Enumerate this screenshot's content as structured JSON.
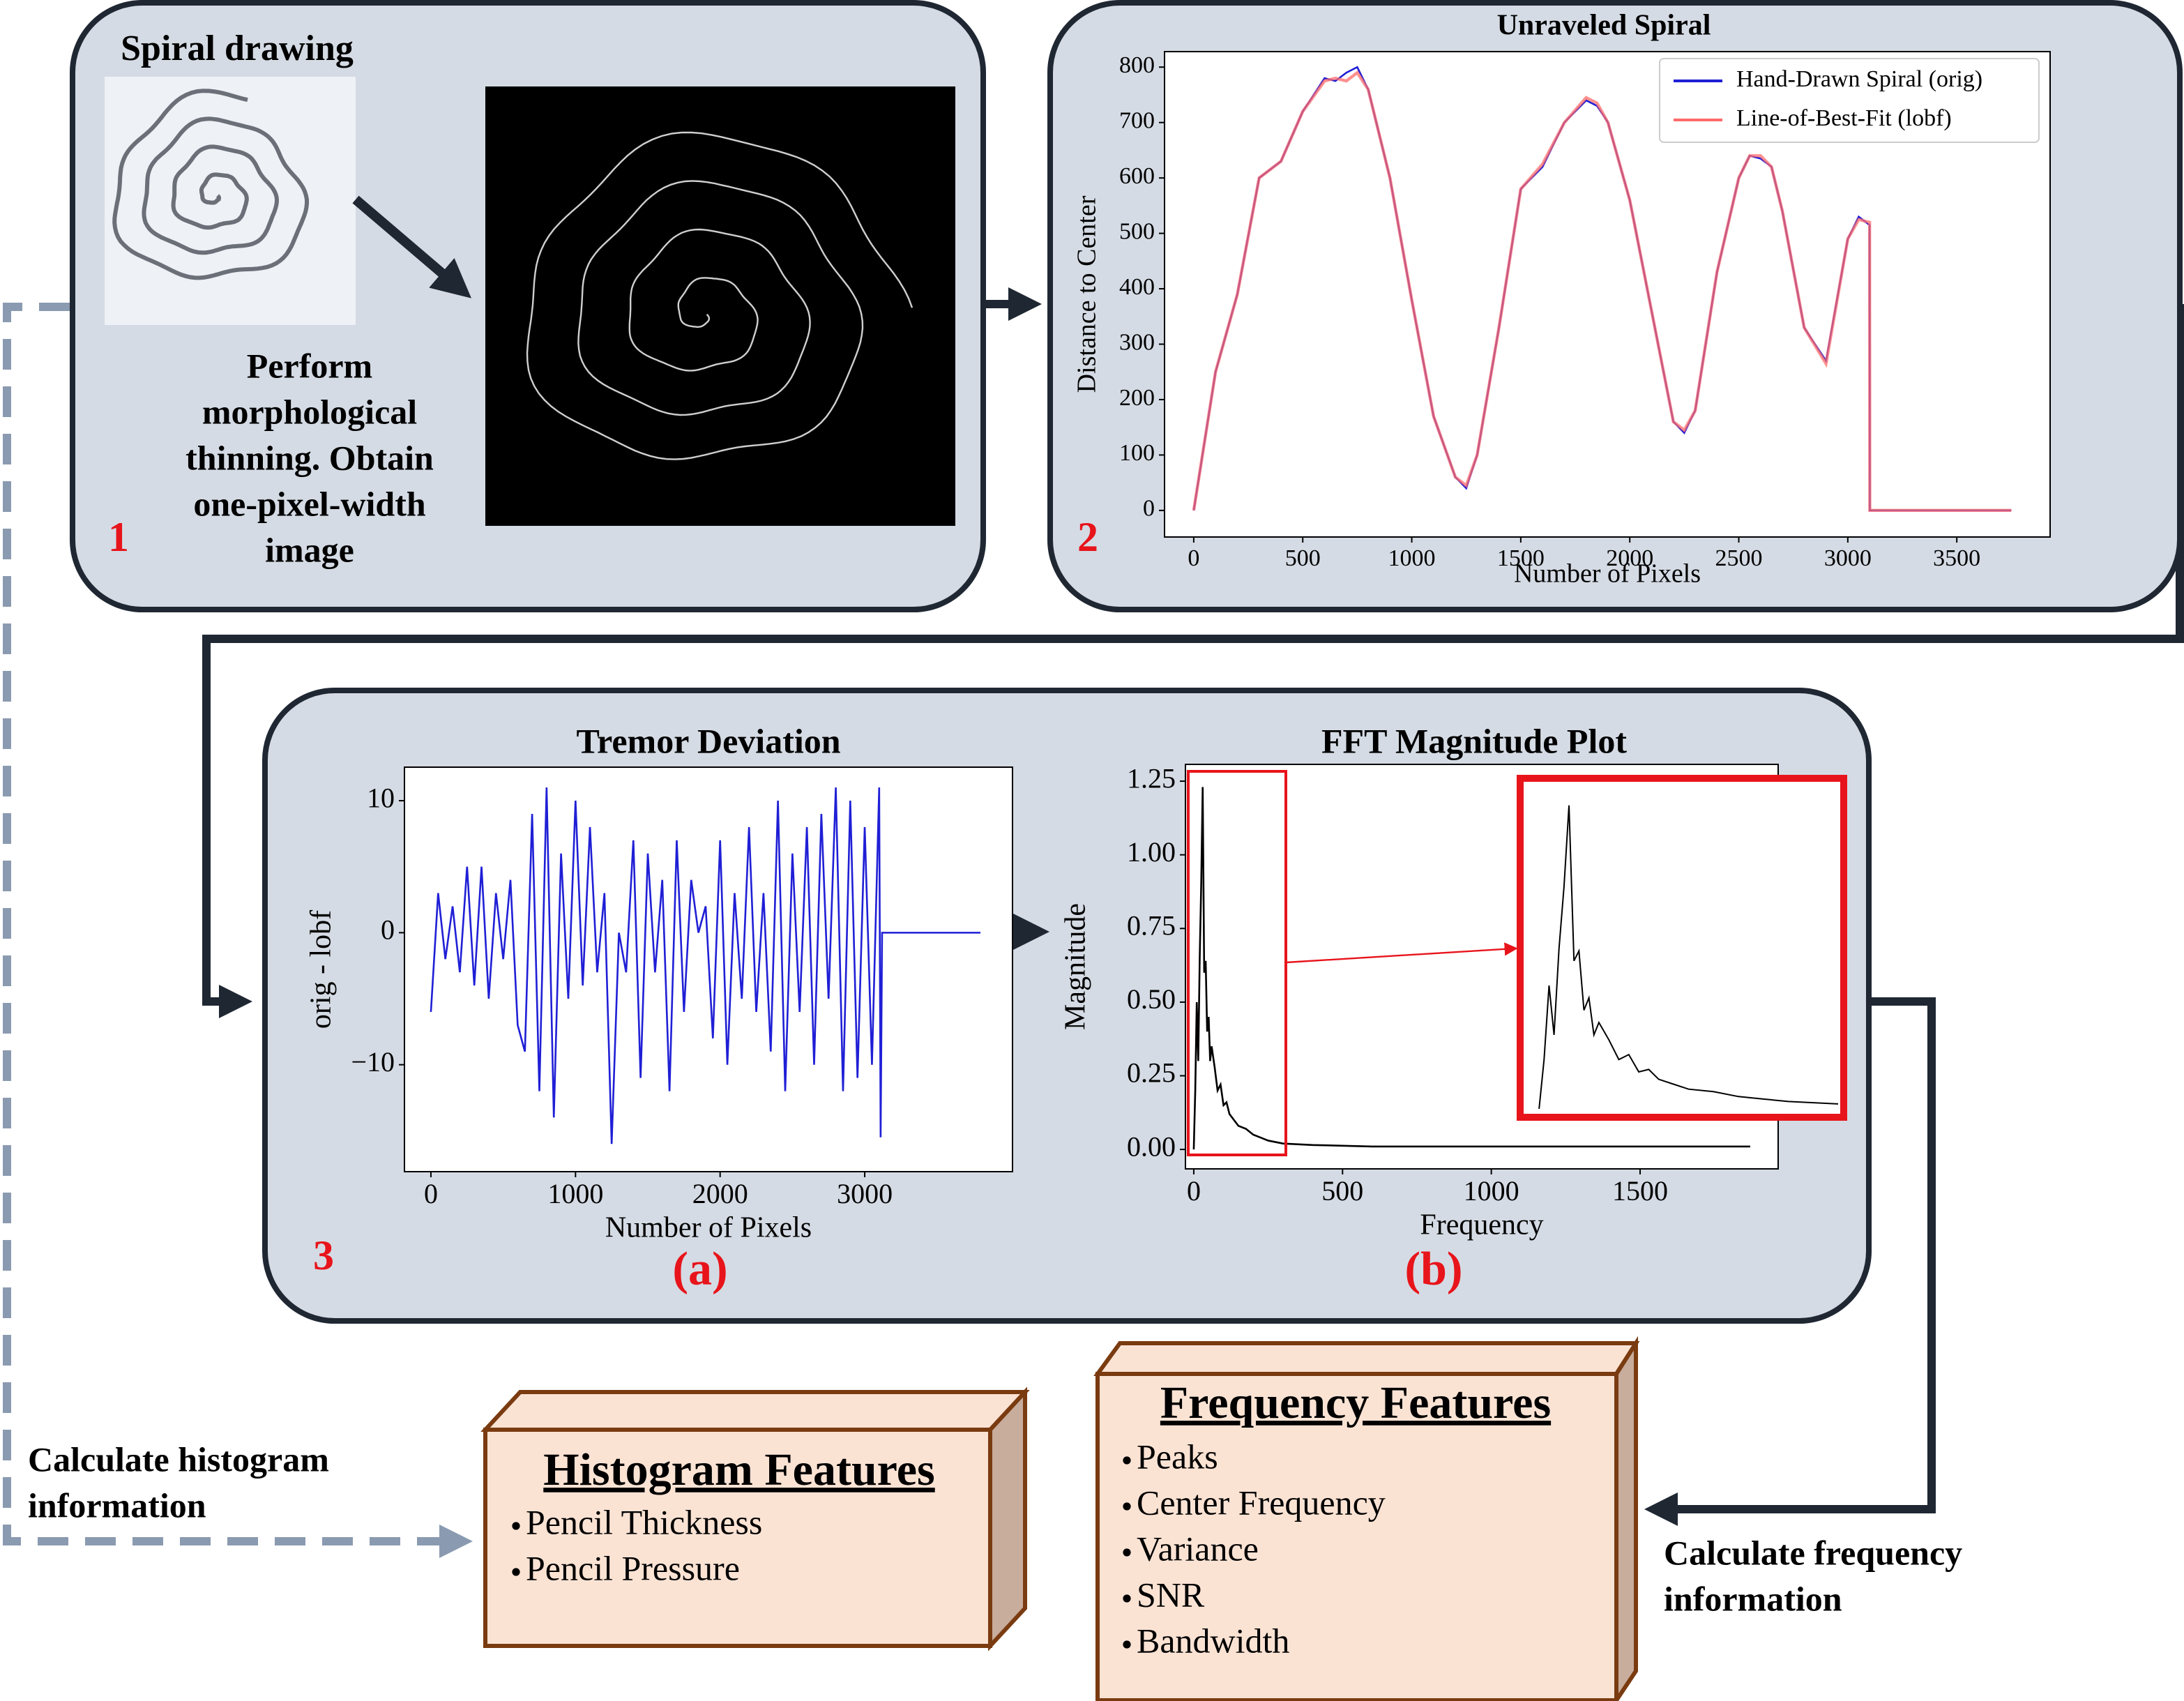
{
  "panel1": {
    "title": "Spiral drawing",
    "caption_lines": [
      "Perform",
      "morphological",
      "thinning. Obtain",
      "one-pixel-width",
      "image"
    ],
    "number": "1"
  },
  "panel2": {
    "number": "2"
  },
  "panel3": {
    "number": "3",
    "sublabels": [
      "(a)",
      "(b)"
    ]
  },
  "chart_data": [
    {
      "type": "line",
      "title": "Unraveled Spiral",
      "x_label": "Number of Pixels",
      "y_label": "Distance to Center",
      "x": [
        0,
        100,
        200,
        300,
        350,
        400,
        500,
        600,
        650,
        700,
        750,
        800,
        900,
        1000,
        1100,
        1200,
        1250,
        1300,
        1400,
        1500,
        1600,
        1700,
        1800,
        1850,
        1900,
        2000,
        2100,
        2200,
        2250,
        2300,
        2400,
        2500,
        2550,
        2600,
        2650,
        2700,
        2800,
        2900,
        3000,
        3050,
        3100,
        3101,
        3500,
        3750
      ],
      "series": [
        {
          "name": "Hand-Drawn Spiral (orig)",
          "color": "#1f1fd6",
          "values": [
            0,
            250,
            390,
            600,
            615,
            630,
            720,
            780,
            775,
            790,
            800,
            760,
            600,
            380,
            170,
            60,
            40,
            100,
            330,
            580,
            620,
            700,
            740,
            730,
            700,
            560,
            360,
            160,
            140,
            180,
            430,
            600,
            640,
            635,
            620,
            540,
            330,
            270,
            490,
            530,
            515,
            0,
            0,
            0
          ]
        },
        {
          "name": "Line-of-Best-Fit (lobf)",
          "color": "#ff6b6b",
          "values": [
            0,
            250,
            390,
            600,
            615,
            630,
            720,
            775,
            780,
            775,
            790,
            760,
            600,
            380,
            170,
            60,
            45,
            100,
            330,
            580,
            625,
            700,
            745,
            735,
            700,
            560,
            360,
            160,
            145,
            180,
            430,
            600,
            640,
            640,
            620,
            540,
            330,
            265,
            490,
            525,
            520,
            0,
            0,
            0
          ]
        }
      ],
      "xlim": [
        -134,
        3928
      ],
      "ylim": [
        -48,
        828
      ],
      "xticks": [
        0,
        500,
        1000,
        1500,
        2000,
        2500,
        3000,
        3500
      ],
      "yticks": [
        0,
        100,
        200,
        300,
        400,
        500,
        600,
        700,
        800
      ],
      "legend": "upper right",
      "grid": false
    },
    {
      "type": "line",
      "title": "Tremor Deviation",
      "x_label": "Number of Pixels",
      "y_label": "orig - lobf",
      "x": [
        0,
        50,
        100,
        150,
        200,
        250,
        300,
        350,
        400,
        450,
        500,
        550,
        600,
        650,
        700,
        750,
        800,
        850,
        900,
        950,
        1000,
        1050,
        1100,
        1150,
        1200,
        1250,
        1300,
        1350,
        1400,
        1450,
        1500,
        1550,
        1600,
        1650,
        1700,
        1750,
        1800,
        1850,
        1900,
        1950,
        2000,
        2050,
        2100,
        2150,
        2200,
        2250,
        2300,
        2350,
        2400,
        2450,
        2500,
        2550,
        2600,
        2650,
        2700,
        2750,
        2800,
        2850,
        2900,
        2950,
        3000,
        3050,
        3100,
        3110,
        3120,
        3800
      ],
      "series": [
        {
          "name": null,
          "color": "#1f1fd6",
          "values": [
            -6,
            3,
            -2,
            2,
            -3,
            5,
            -4,
            5,
            -5,
            3,
            -2,
            4,
            -7,
            -9,
            9,
            -12,
            11,
            -14,
            6,
            -5,
            10,
            -4,
            8,
            -3,
            3,
            -16,
            0,
            -3,
            7,
            -11,
            6,
            -3,
            4,
            -12,
            7,
            -6,
            4,
            0,
            2,
            -8,
            7,
            -10,
            3,
            -5,
            8,
            -6,
            3,
            -9,
            10,
            -12,
            6,
            -6,
            8,
            -10,
            9,
            -5,
            11,
            -12,
            10,
            -11,
            8,
            -10,
            11,
            -15.5,
            0,
            0
          ]
        }
      ],
      "xlim": [
        -183,
        4022
      ],
      "ylim": [
        -18.1,
        12.54
      ],
      "xticks": [
        0,
        1000,
        2000,
        3000
      ],
      "yticks": [
        {
          "value": -10,
          "label": "−10"
        },
        0,
        10
      ],
      "grid": false
    },
    {
      "type": "line",
      "title": "FFT Magnitude Plot",
      "x_label": "Frequency",
      "y_label": "Magnitude",
      "x": [
        0,
        5,
        10,
        15,
        20,
        25,
        30,
        35,
        40,
        45,
        50,
        55,
        60,
        70,
        80,
        90,
        100,
        110,
        120,
        135,
        150,
        175,
        200,
        225,
        250,
        300,
        400,
        600,
        1000,
        1500,
        1870
      ],
      "series": [
        {
          "name": null,
          "color": "#000000",
          "values": [
            0,
            0.2,
            0.5,
            0.3,
            0.65,
            0.9,
            1.23,
            0.6,
            0.64,
            0.4,
            0.45,
            0.3,
            0.35,
            0.28,
            0.2,
            0.22,
            0.15,
            0.16,
            0.12,
            0.1,
            0.08,
            0.07,
            0.05,
            0.04,
            0.03,
            0.02,
            0.015,
            0.01,
            0.01,
            0.01,
            0.01
          ]
        }
      ],
      "xlim": [
        -28,
        1964
      ],
      "ylim": [
        -0.066,
        1.307
      ],
      "xticks": [
        0,
        500,
        1000,
        1500
      ],
      "yticks": [
        {
          "value": 0,
          "label": "0.00"
        },
        {
          "value": 0.25,
          "label": "0.25"
        },
        {
          "value": 0.5,
          "label": "0.50"
        },
        {
          "value": 0.75,
          "label": "0.75"
        },
        {
          "value": 1,
          "label": "1.00"
        },
        {
          "value": 1.25,
          "label": "1.25"
        }
      ],
      "grid": false
    }
  ],
  "histogram_box": {
    "title": "Histogram Features",
    "items": [
      "Pencil Thickness",
      "Pencil Pressure"
    ]
  },
  "frequency_box": {
    "title": "Frequency Features",
    "items": [
      "Peaks",
      "Center Frequency",
      "Variance",
      "SNR",
      "Bandwidth"
    ]
  },
  "edge_labels": {
    "histogram": [
      "Calculate histogram",
      "information"
    ],
    "frequency": [
      "Calculate frequency",
      "information"
    ]
  }
}
